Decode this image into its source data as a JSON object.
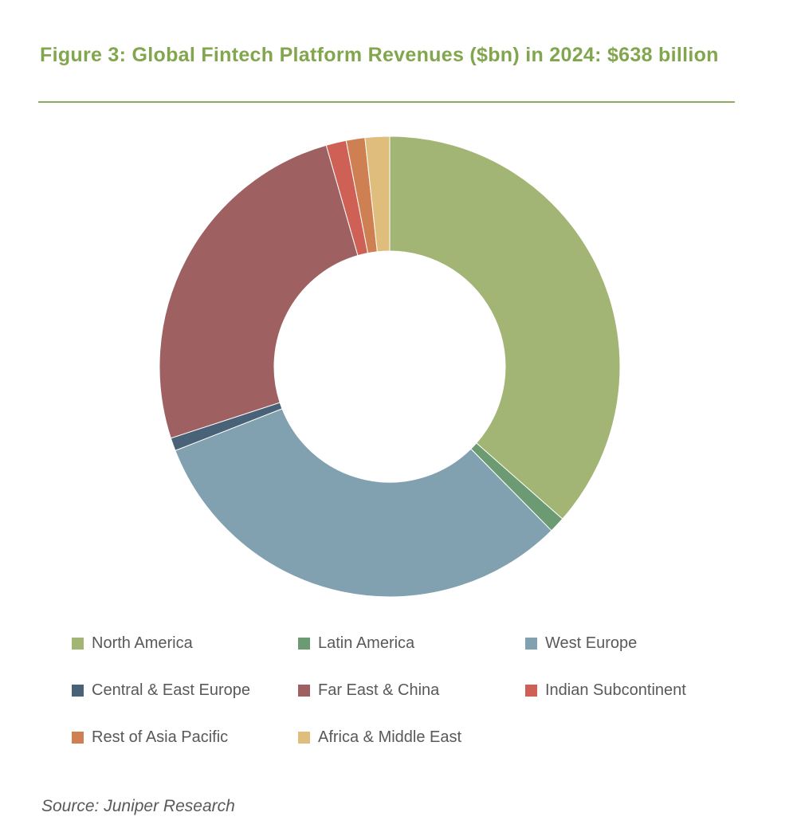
{
  "chart_data": {
    "type": "pie",
    "title": "Figure 3: Global Fintech Platform Revenues ($bn) in 2024: $638 billion",
    "categories": [
      "North America",
      "Latin America",
      "West Europe",
      "Central & East Europe",
      "Far East & China",
      "Indian Subcontinent",
      "Rest of Asia Pacific",
      "Africa & Middle East"
    ],
    "values": [
      36.1,
      1.1,
      31.1,
      0.9,
      25.3,
      1.4,
      1.3,
      1.7
    ],
    "colors": [
      "#A2B574",
      "#6C9A72",
      "#81A0B0",
      "#4A6277",
      "#9E6060",
      "#CE6056",
      "#CF8052",
      "#DFBE7D"
    ],
    "legend_position": "bottom"
  },
  "source": "Source: Juniper Research"
}
